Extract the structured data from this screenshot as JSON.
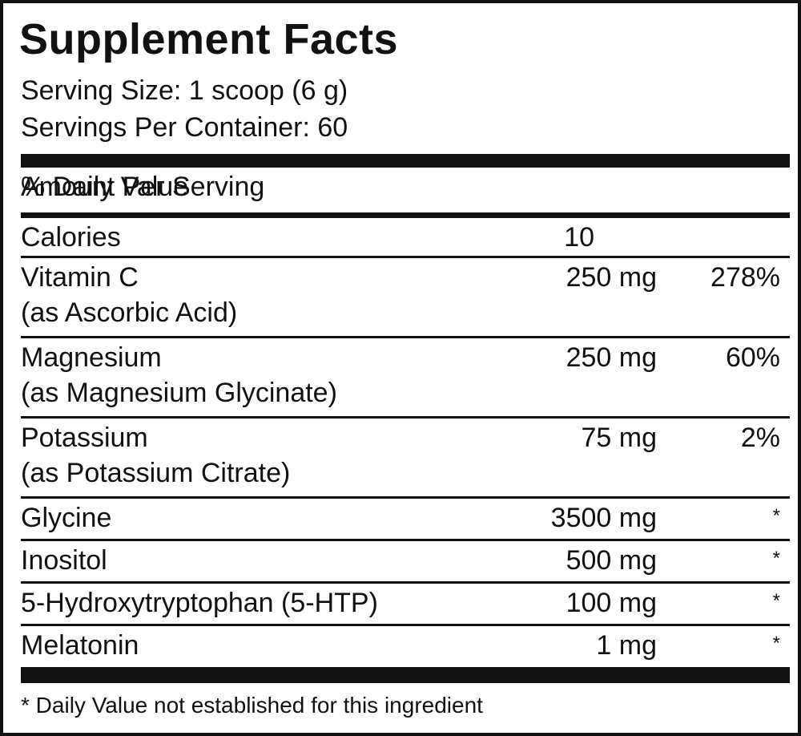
{
  "title": "Supplement Facts",
  "serving_size": "Serving Size: 1 scoop (6 g)",
  "servings_per_container": "Servings Per Container: 60",
  "header": {
    "amount": "Amount Per Serving",
    "daily_value": "% Daily Value"
  },
  "rows": [
    {
      "name": "Calories",
      "amount": "10"
    },
    {
      "name": "Vitamin C",
      "sub": "(as Ascorbic Acid)",
      "amount": "250 mg",
      "daily_value": "278%"
    },
    {
      "name": "Magnesium",
      "sub": "(as Magnesium Glycinate)",
      "amount": "250 mg",
      "daily_value": "60%"
    },
    {
      "name": "Potassium",
      "sub": "(as Potassium Citrate)",
      "amount": "75 mg",
      "daily_value": "2%"
    },
    {
      "name": "Glycine",
      "amount": "3500 mg",
      "daily_value": "*"
    },
    {
      "name": "Inositol",
      "amount": "500 mg",
      "daily_value": "*"
    },
    {
      "name": "5-Hydroxytryptophan (5-HTP)",
      "amount": "100 mg",
      "daily_value": "*"
    },
    {
      "name": "Melatonin",
      "amount": "1 mg",
      "daily_value": "*"
    }
  ],
  "footnote": "* Daily Value not established for this ingredient"
}
